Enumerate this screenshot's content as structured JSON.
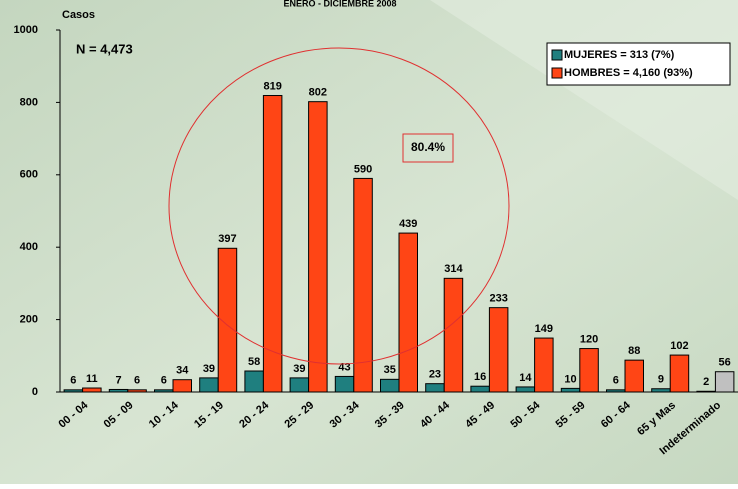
{
  "chart_data": {
    "type": "bar",
    "title": "ENERO - DICIEMBRE 2008",
    "ylabel": "Casos",
    "annotations": [
      "N = 4,473",
      "80.4%"
    ],
    "categories": [
      "00 - 04",
      "05 - 09",
      "10 - 14",
      "15 - 19",
      "20 - 24",
      "25 - 29",
      "30 - 34",
      "35 - 39",
      "40 - 44",
      "45 - 49",
      "50 - 54",
      "55 - 59",
      "60 - 64",
      "65 y Mas",
      "Indeterminado"
    ],
    "series": [
      {
        "name": "MUJERES = 313 (7%)",
        "color": "#1f7f7f",
        "values": [
          6,
          7,
          6,
          39,
          58,
          39,
          43,
          35,
          23,
          16,
          14,
          10,
          6,
          9,
          2
        ]
      },
      {
        "name": "HOMBRES = 4,160 (93%)",
        "color": "#ff4515",
        "values": [
          11,
          6,
          34,
          397,
          819,
          802,
          590,
          439,
          314,
          233,
          149,
          120,
          88,
          102,
          56
        ],
        "colors": [
          "#ff4515",
          "#ff4515",
          "#ff4515",
          "#ff4515",
          "#ff4515",
          "#ff4515",
          "#ff4515",
          "#ff4515",
          "#ff4515",
          "#ff4515",
          "#ff4515",
          "#ff4515",
          "#ff4515",
          "#ff4515",
          "#c0c0c0"
        ]
      }
    ],
    "ylim": [
      0,
      1000
    ],
    "yticks": [
      0,
      200,
      400,
      600,
      800,
      1000
    ],
    "legend": "upper right"
  }
}
